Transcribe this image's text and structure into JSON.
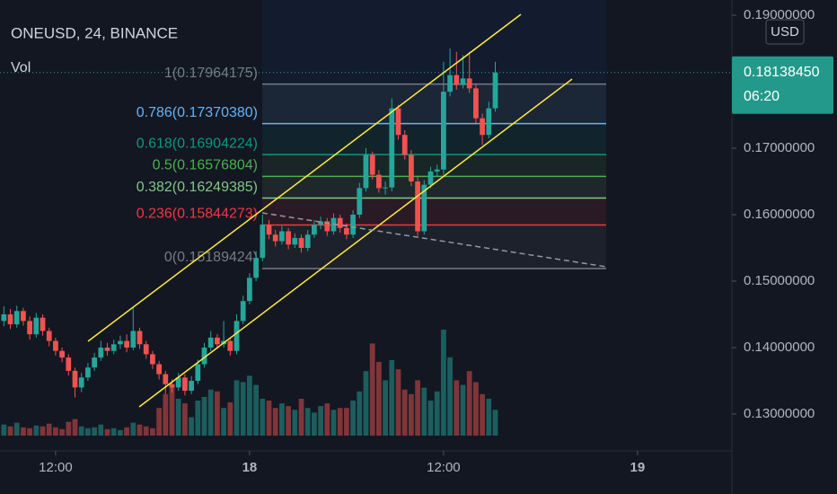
{
  "chart_data": {
    "type": "candlestick",
    "title": "ONEUSD, 24, BINANCE",
    "volume_label": "Vol",
    "currency_button": "USD",
    "up_color": "#26a69a",
    "down_color": "#ef5350",
    "xlim": [
      -0.6,
      112.6
    ],
    "xticks": [
      {
        "value": 8,
        "label": "12:00"
      },
      {
        "value": 38,
        "label": "18"
      },
      {
        "value": 68,
        "label": "12:00"
      },
      {
        "value": 98,
        "label": "19"
      }
    ],
    "ylim": [
      0.1227,
      0.1923
    ],
    "yticks": [
      {
        "value": 0.13,
        "label": "0.13000000"
      },
      {
        "value": 0.14,
        "label": "0.14000000"
      },
      {
        "value": 0.15,
        "label": "0.15000000"
      },
      {
        "value": 0.16,
        "label": "0.16000000"
      },
      {
        "value": 0.17,
        "label": "0.17000000"
      },
      {
        "value": 0.19,
        "label": "0.19000000"
      }
    ],
    "last_price": {
      "value": 0.1813845,
      "label": "0.18138450"
    },
    "countdown": "06:20",
    "fib_levels": [
      {
        "value": 0.17964175,
        "label": "1(0.17964175)",
        "color": "#787b86"
      },
      {
        "value": 0.1737038,
        "label": "0.786(0.17370380)",
        "color": "#64b5f6"
      },
      {
        "value": 0.16904224,
        "label": "0.618(0.16904224)",
        "color": "#089981"
      },
      {
        "value": 0.16576804,
        "label": "0.5(0.16576804)",
        "color": "#4caf50"
      },
      {
        "value": 0.16249385,
        "label": "0.382(0.16249385)",
        "color": "#81c784"
      },
      {
        "value": 0.15844273,
        "label": "0.236(0.15844273)",
        "color": "#f23645"
      },
      {
        "value": 0.15189424,
        "label": "0(0.15189424)",
        "color": "#787b86"
      }
    ],
    "x": [
      0,
      1,
      2,
      3,
      4,
      5,
      6,
      7,
      8,
      9,
      10,
      11,
      12,
      13,
      14,
      15,
      16,
      17,
      18,
      19,
      20,
      21,
      22,
      23,
      24,
      25,
      26,
      27,
      28,
      29,
      30,
      31,
      32,
      33,
      34,
      35,
      36,
      37,
      38,
      39,
      40,
      41,
      42,
      43,
      44,
      45,
      46,
      47,
      48,
      49,
      50,
      51,
      52,
      53,
      54,
      55,
      56,
      57,
      58,
      59,
      60,
      61,
      62,
      63,
      64,
      65,
      66,
      67,
      68,
      69,
      70,
      71,
      72,
      73,
      74,
      75,
      76
    ],
    "ohlc": [
      [
        0.144,
        0.1462,
        0.1432,
        0.145
      ],
      [
        0.145,
        0.1458,
        0.1428,
        0.1435
      ],
      [
        0.1435,
        0.1463,
        0.143,
        0.1455
      ],
      [
        0.1455,
        0.146,
        0.1433,
        0.144
      ],
      [
        0.144,
        0.1447,
        0.1412,
        0.142
      ],
      [
        0.142,
        0.1452,
        0.1415,
        0.1445
      ],
      [
        0.1445,
        0.145,
        0.1418,
        0.1425
      ],
      [
        0.1425,
        0.143,
        0.1402,
        0.141
      ],
      [
        0.141,
        0.1415,
        0.1388,
        0.1395
      ],
      [
        0.1395,
        0.14,
        0.1378,
        0.1385
      ],
      [
        0.1385,
        0.139,
        0.1358,
        0.1365
      ],
      [
        0.1365,
        0.137,
        0.1325,
        0.134
      ],
      [
        0.134,
        0.1362,
        0.1333,
        0.1355
      ],
      [
        0.1355,
        0.1377,
        0.135,
        0.137
      ],
      [
        0.137,
        0.1392,
        0.1365,
        0.1385
      ],
      [
        0.1385,
        0.141,
        0.138,
        0.14
      ],
      [
        0.14,
        0.1407,
        0.1388,
        0.1395
      ],
      [
        0.1395,
        0.1412,
        0.139,
        0.1405
      ],
      [
        0.1405,
        0.1418,
        0.1398,
        0.141
      ],
      [
        0.141,
        0.142,
        0.1393,
        0.14
      ],
      [
        0.14,
        0.146,
        0.1396,
        0.1425
      ],
      [
        0.1425,
        0.143,
        0.1398,
        0.1405
      ],
      [
        0.1405,
        0.141,
        0.1383,
        0.139
      ],
      [
        0.139,
        0.1395,
        0.1368,
        0.1375
      ],
      [
        0.1375,
        0.138,
        0.1352,
        0.136
      ],
      [
        0.136,
        0.1365,
        0.133,
        0.1345
      ],
      [
        0.1345,
        0.1352,
        0.1332,
        0.134
      ],
      [
        0.134,
        0.1362,
        0.1335,
        0.1355
      ],
      [
        0.1355,
        0.136,
        0.1328,
        0.1335
      ],
      [
        0.1335,
        0.1357,
        0.133,
        0.135
      ],
      [
        0.135,
        0.1382,
        0.1345,
        0.1375
      ],
      [
        0.1375,
        0.1407,
        0.137,
        0.14
      ],
      [
        0.14,
        0.1425,
        0.1395,
        0.1415
      ],
      [
        0.1415,
        0.142,
        0.1398,
        0.1405
      ],
      [
        0.1405,
        0.144,
        0.14,
        0.141
      ],
      [
        0.141,
        0.1415,
        0.1388,
        0.1395
      ],
      [
        0.1395,
        0.145,
        0.139,
        0.144
      ],
      [
        0.144,
        0.1478,
        0.1435,
        0.147
      ],
      [
        0.147,
        0.1512,
        0.1465,
        0.1505
      ],
      [
        0.1505,
        0.1545,
        0.15,
        0.1535
      ],
      [
        0.1535,
        0.16,
        0.153,
        0.1585
      ],
      [
        0.1585,
        0.1592,
        0.1563,
        0.157
      ],
      [
        0.157,
        0.1577,
        0.1552,
        0.156
      ],
      [
        0.156,
        0.1583,
        0.1555,
        0.1575
      ],
      [
        0.1575,
        0.158,
        0.1548,
        0.1555
      ],
      [
        0.1555,
        0.1572,
        0.155,
        0.1565
      ],
      [
        0.1565,
        0.157,
        0.1543,
        0.155
      ],
      [
        0.155,
        0.1577,
        0.1545,
        0.157
      ],
      [
        0.157,
        0.1592,
        0.1565,
        0.1585
      ],
      [
        0.1585,
        0.1597,
        0.1578,
        0.159
      ],
      [
        0.159,
        0.1595,
        0.1568,
        0.1575
      ],
      [
        0.1575,
        0.1602,
        0.157,
        0.1595
      ],
      [
        0.1595,
        0.16,
        0.1573,
        0.158
      ],
      [
        0.158,
        0.1587,
        0.1563,
        0.157
      ],
      [
        0.157,
        0.1607,
        0.1565,
        0.16
      ],
      [
        0.16,
        0.1648,
        0.1595,
        0.164
      ],
      [
        0.164,
        0.17,
        0.1635,
        0.169
      ],
      [
        0.169,
        0.1695,
        0.1653,
        0.166
      ],
      [
        0.166,
        0.1667,
        0.1633,
        0.164
      ],
      [
        0.164,
        0.165,
        0.163,
        0.1641
      ],
      [
        0.1641,
        0.1775,
        0.1635,
        0.176
      ],
      [
        0.176,
        0.1765,
        0.1713,
        0.172
      ],
      [
        0.172,
        0.1727,
        0.1683,
        0.169
      ],
      [
        0.169,
        0.1697,
        0.1643,
        0.165
      ],
      [
        0.165,
        0.1657,
        0.1568,
        0.1575
      ],
      [
        0.1575,
        0.1652,
        0.157,
        0.1645
      ],
      [
        0.1645,
        0.1672,
        0.164,
        0.1665
      ],
      [
        0.1665,
        0.1675,
        0.1658,
        0.1668
      ],
      [
        0.1668,
        0.183,
        0.166,
        0.1785
      ],
      [
        0.1785,
        0.185,
        0.1778,
        0.181
      ],
      [
        0.181,
        0.1845,
        0.1788,
        0.1795
      ],
      [
        0.1795,
        0.184,
        0.179,
        0.1805
      ],
      [
        0.1805,
        0.1845,
        0.1783,
        0.179
      ],
      [
        0.179,
        0.1797,
        0.1738,
        0.1745
      ],
      [
        0.1745,
        0.1752,
        0.1705,
        0.172
      ],
      [
        0.172,
        0.177,
        0.1715,
        0.176
      ],
      [
        0.176,
        0.183,
        0.1755,
        0.1813845
      ]
    ],
    "volume": [
      12,
      10,
      14,
      9,
      8,
      11,
      10,
      13,
      9,
      7,
      15,
      18,
      10,
      8,
      9,
      12,
      7,
      8,
      6,
      9,
      14,
      12,
      10,
      8,
      30,
      45,
      55,
      40,
      35,
      20,
      38,
      42,
      50,
      48,
      30,
      36,
      60,
      58,
      65,
      55,
      40,
      38,
      30,
      35,
      32,
      28,
      40,
      30,
      25,
      32,
      35,
      28,
      30,
      30,
      38,
      48,
      70,
      100,
      80,
      60,
      82,
      72,
      50,
      45,
      60,
      52,
      38,
      48,
      115,
      85,
      60,
      55,
      70,
      58,
      45,
      40,
      28
    ]
  }
}
